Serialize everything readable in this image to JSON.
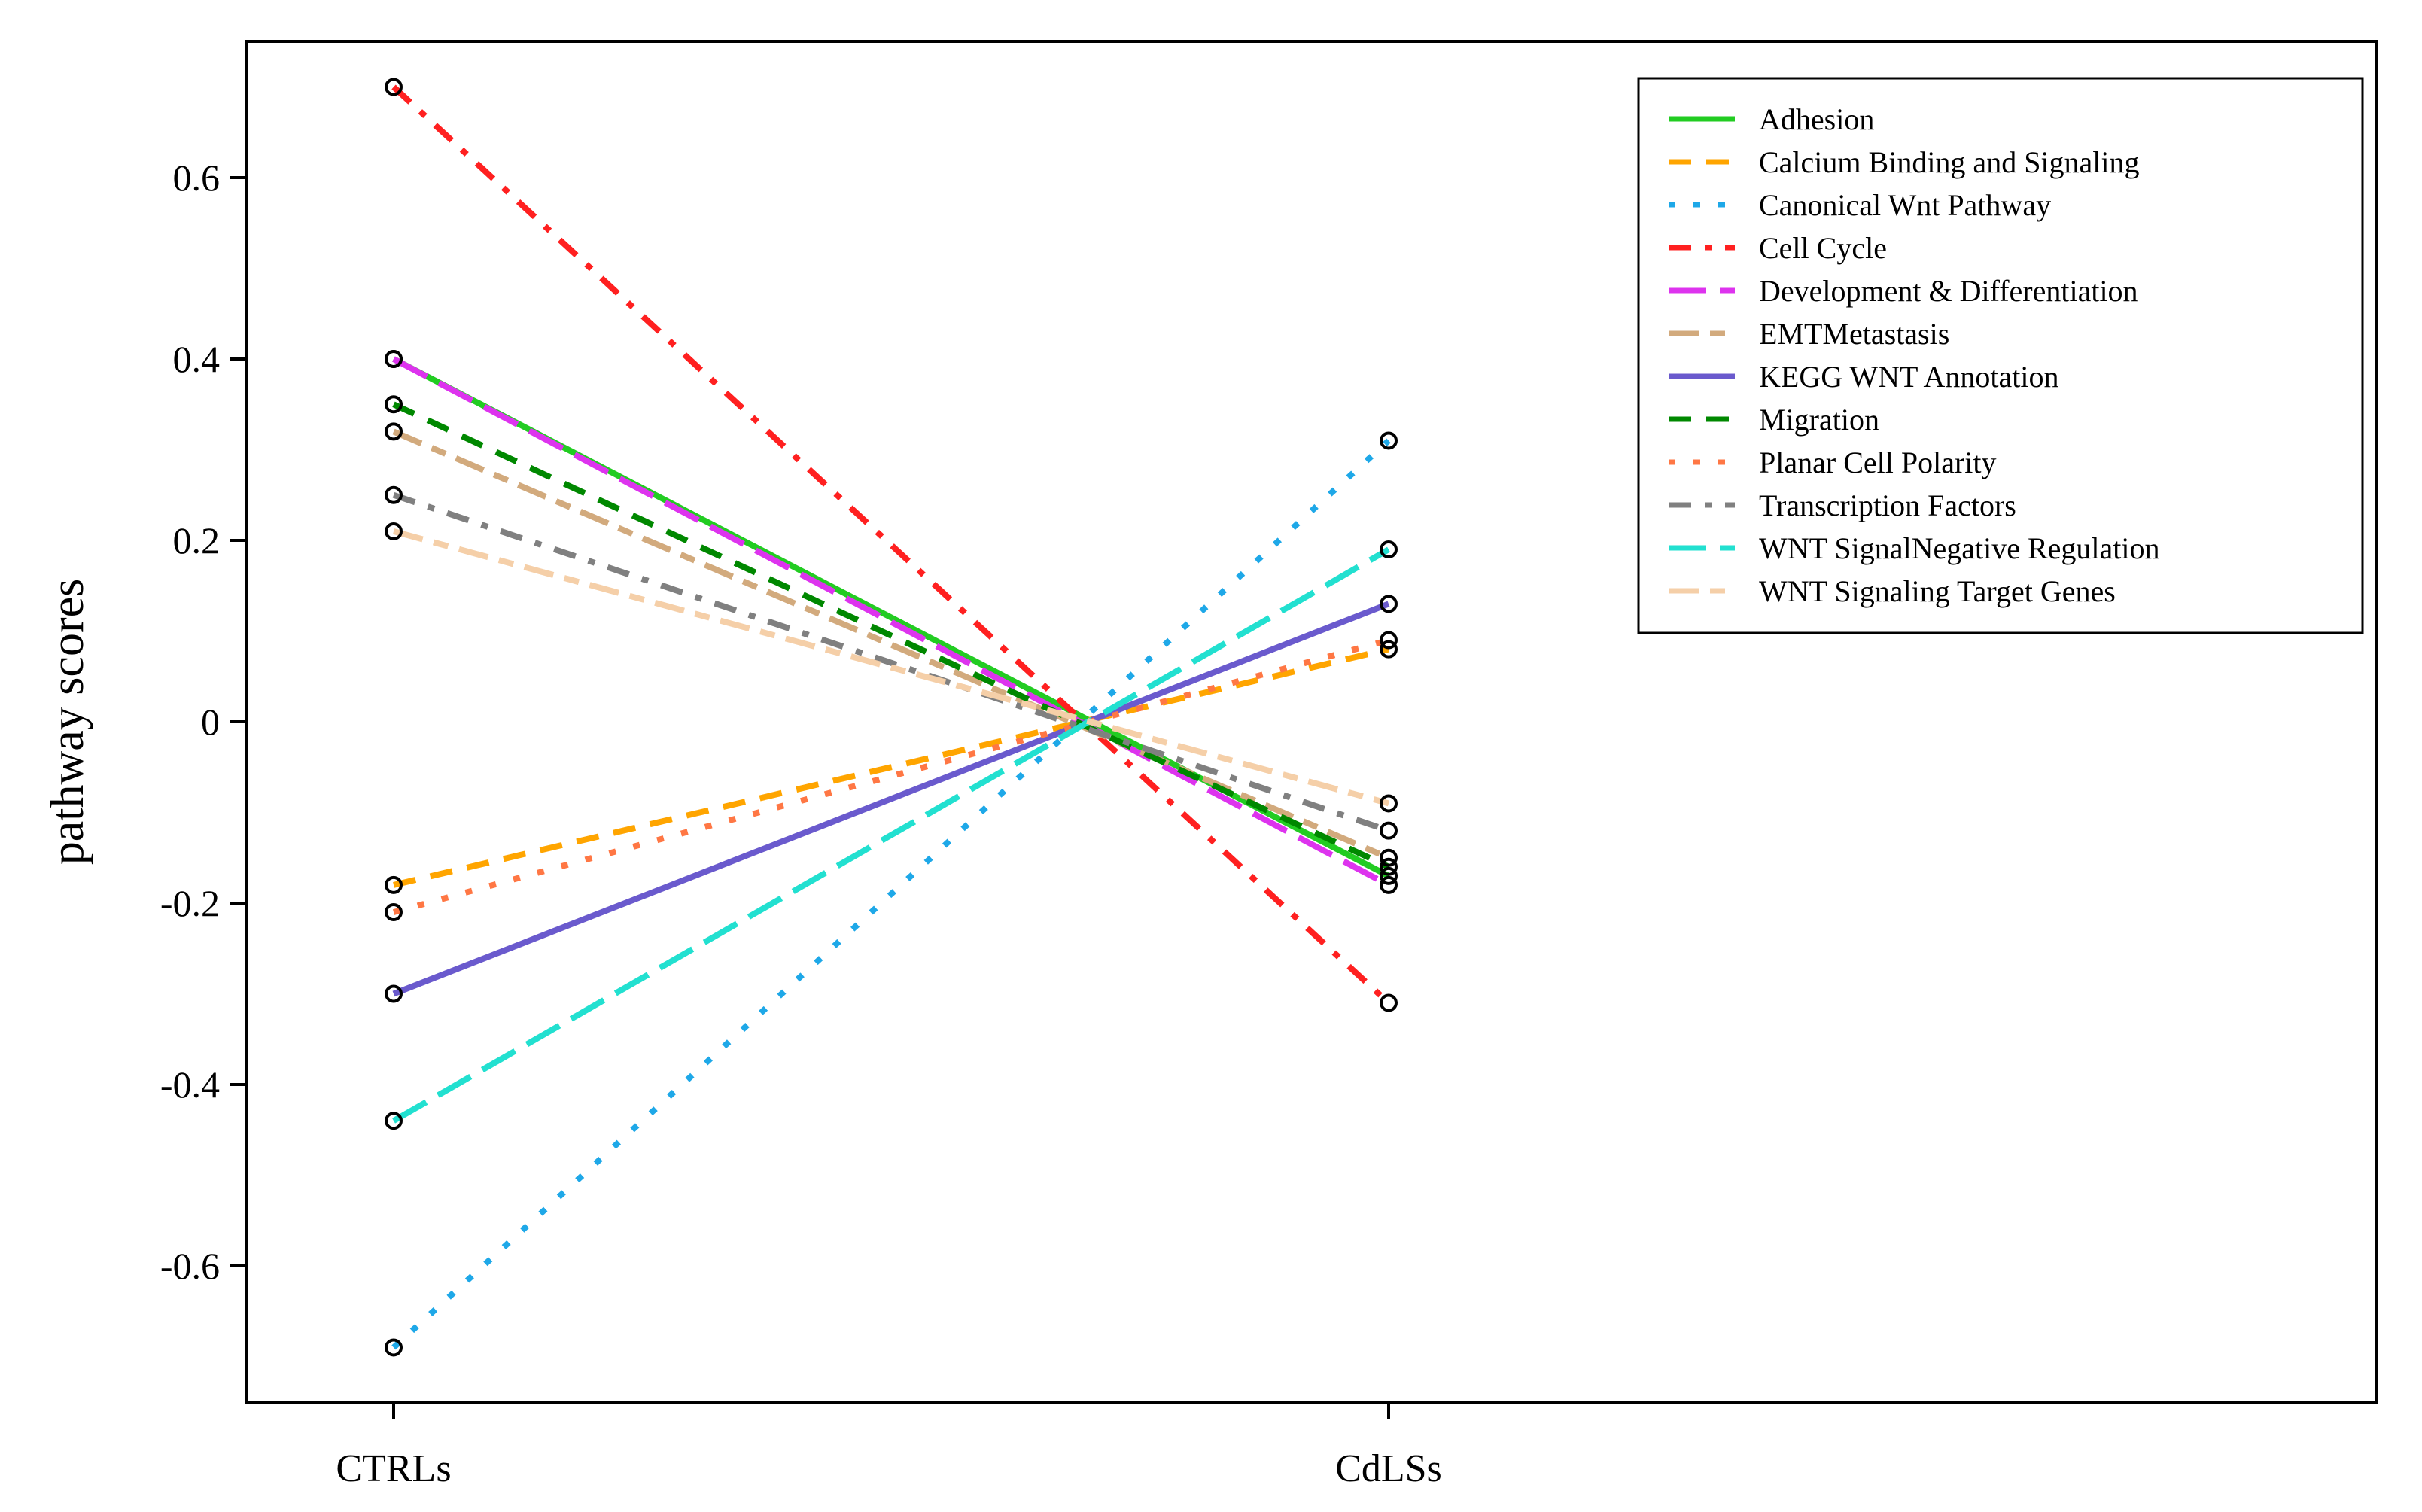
{
  "chart_data": {
    "type": "line",
    "title": "",
    "xlabel": "",
    "ylabel": "pathway scores",
    "categories": [
      "CTRLs",
      "CdLSs"
    ],
    "ylim": [
      -0.75,
      0.75
    ],
    "yticks": [
      0.6,
      0.4,
      0.2,
      0,
      -0.2,
      -0.4,
      -0.6
    ],
    "ytick_labels": [
      "0.6",
      "0.4",
      "0.2",
      "0",
      "-0.2",
      "-0.4",
      "-0.6"
    ],
    "legend_position": "top-right",
    "series": [
      {
        "name": "Adhesion",
        "values": [
          0.4,
          -0.17
        ],
        "color": "#22cc22",
        "dash": "solid"
      },
      {
        "name": "Calcium Binding and Signaling",
        "values": [
          -0.18,
          0.08
        ],
        "color": "#ffa500",
        "dash": "dash"
      },
      {
        "name": "Canonical Wnt Pathway",
        "values": [
          -0.69,
          0.31
        ],
        "color": "#1ea8e8",
        "dash": "dot"
      },
      {
        "name": "Cell Cycle",
        "values": [
          0.7,
          -0.31
        ],
        "color": "#ff2020",
        "dash": "dashdot"
      },
      {
        "name": "Development & Differentiation",
        "values": [
          0.4,
          -0.18
        ],
        "color": "#dd33ee",
        "dash": "longdash"
      },
      {
        "name": "EMTMetastasis",
        "values": [
          0.32,
          -0.15
        ],
        "color": "#d2aa7d",
        "dash": "twodash"
      },
      {
        "name": "KEGG WNT Annotation",
        "values": [
          -0.3,
          0.13
        ],
        "color": "#6a5acd",
        "dash": "solid"
      },
      {
        "name": "Migration",
        "values": [
          0.35,
          -0.16
        ],
        "color": "#008800",
        "dash": "dash"
      },
      {
        "name": "Planar Cell Polarity",
        "values": [
          -0.21,
          0.09
        ],
        "color": "#ff7744",
        "dash": "dot"
      },
      {
        "name": "Transcription Factors",
        "values": [
          0.25,
          -0.12
        ],
        "color": "#808080",
        "dash": "dashdot"
      },
      {
        "name": "WNT SignalNegative Regulation",
        "values": [
          -0.44,
          0.19
        ],
        "color": "#22e0d0",
        "dash": "longdash"
      },
      {
        "name": "WNT Signaling Target Genes",
        "values": [
          0.21,
          -0.09
        ],
        "color": "#f5cfa8",
        "dash": "twodash"
      }
    ]
  }
}
